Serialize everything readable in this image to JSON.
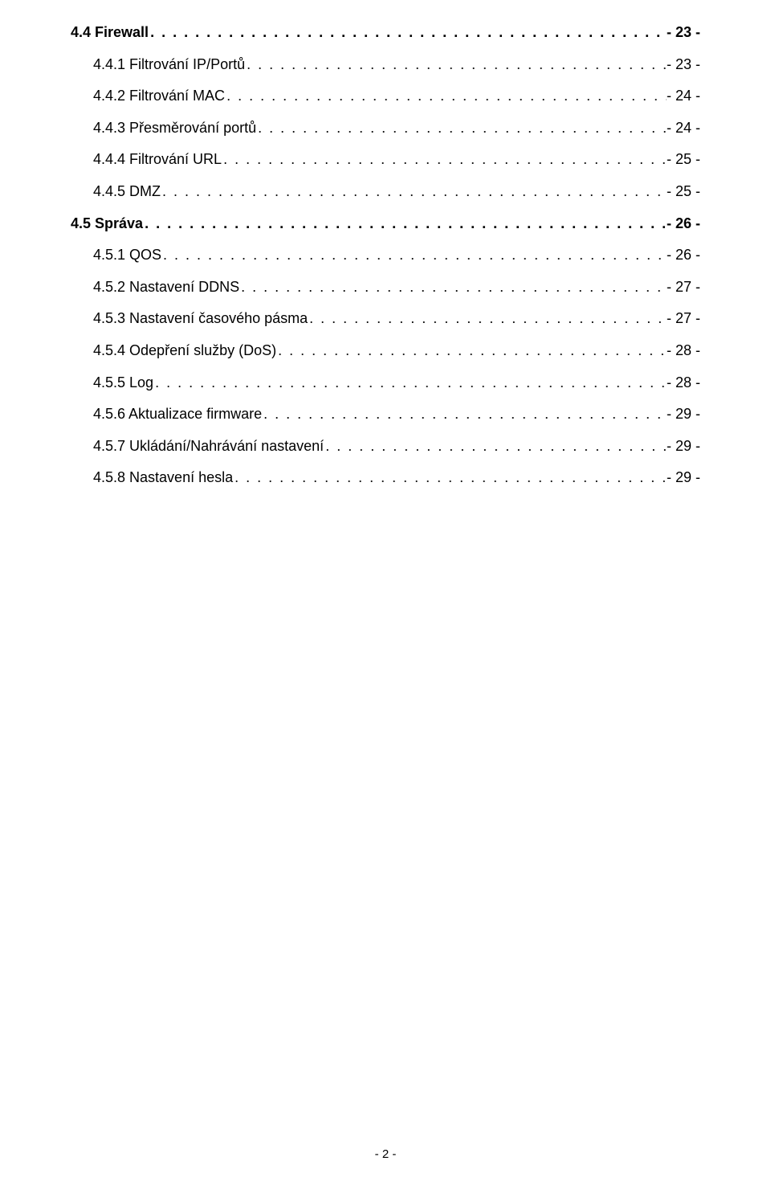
{
  "toc": [
    {
      "label": "4.4  Firewall",
      "page": "- 23 -",
      "bold": true,
      "indent": 0
    },
    {
      "label": "4.4.1  Filtrování IP/Portů",
      "page": "- 23 -",
      "bold": false,
      "indent": 1
    },
    {
      "label": "4.4.2  Filtrování MAC",
      "page": "- 24 -",
      "bold": false,
      "indent": 1
    },
    {
      "label": "4.4.3  Přesměrování portů",
      "page": "- 24 -",
      "bold": false,
      "indent": 1
    },
    {
      "label": "4.4.4  Filtrování URL",
      "page": "- 25 -",
      "bold": false,
      "indent": 1
    },
    {
      "label": "4.4.5  DMZ",
      "page": "- 25 -",
      "bold": false,
      "indent": 1
    },
    {
      "label": "4.5  Správa",
      "page": "- 26 -",
      "bold": true,
      "indent": 0
    },
    {
      "label": "4.5.1  QOS",
      "page": "- 26 -",
      "bold": false,
      "indent": 1
    },
    {
      "label": "4.5.2 Nastavení DDNS",
      "page": "- 27 -",
      "bold": false,
      "indent": 1
    },
    {
      "label": "4.5.3  Nastavení časového pásma",
      "page": "- 27 -",
      "bold": false,
      "indent": 1
    },
    {
      "label": "4.5.4  Odepření služby (DoS)",
      "page": "- 28 -",
      "bold": false,
      "indent": 1
    },
    {
      "label": "4.5.5  Log",
      "page": "- 28 -",
      "bold": false,
      "indent": 1
    },
    {
      "label": "4.5.6  Aktualizace firmware",
      "page": "- 29 -",
      "bold": false,
      "indent": 1
    },
    {
      "label": "4.5.7  Ukládání/Nahrávání nastavení",
      "page": "- 29 -",
      "bold": false,
      "indent": 1
    },
    {
      "label": "4.5.8  Nastavení hesla",
      "page": "- 29 -",
      "bold": false,
      "indent": 1
    }
  ],
  "footer": "- 2 -",
  "dot_fill": ". . . . . . . . . . . . . . . . . . . . . . . . . . . . . . . . . . . . . . . . . . . . . . . . . . . . . . . . . . . . . . . . . . . . . . . . . . . . . . . . . . . . . . . . . . . . . . . . . . . . . . . . . . . . . . . . . . . . . . . . . . . . . . . . . . . . . . . . . . . . . . . . . . . . . . . . . . . . . . . . . . . . . . . . . . . . . . . . . . . . . . . . . . . . . . . . . . . . . . . ."
}
